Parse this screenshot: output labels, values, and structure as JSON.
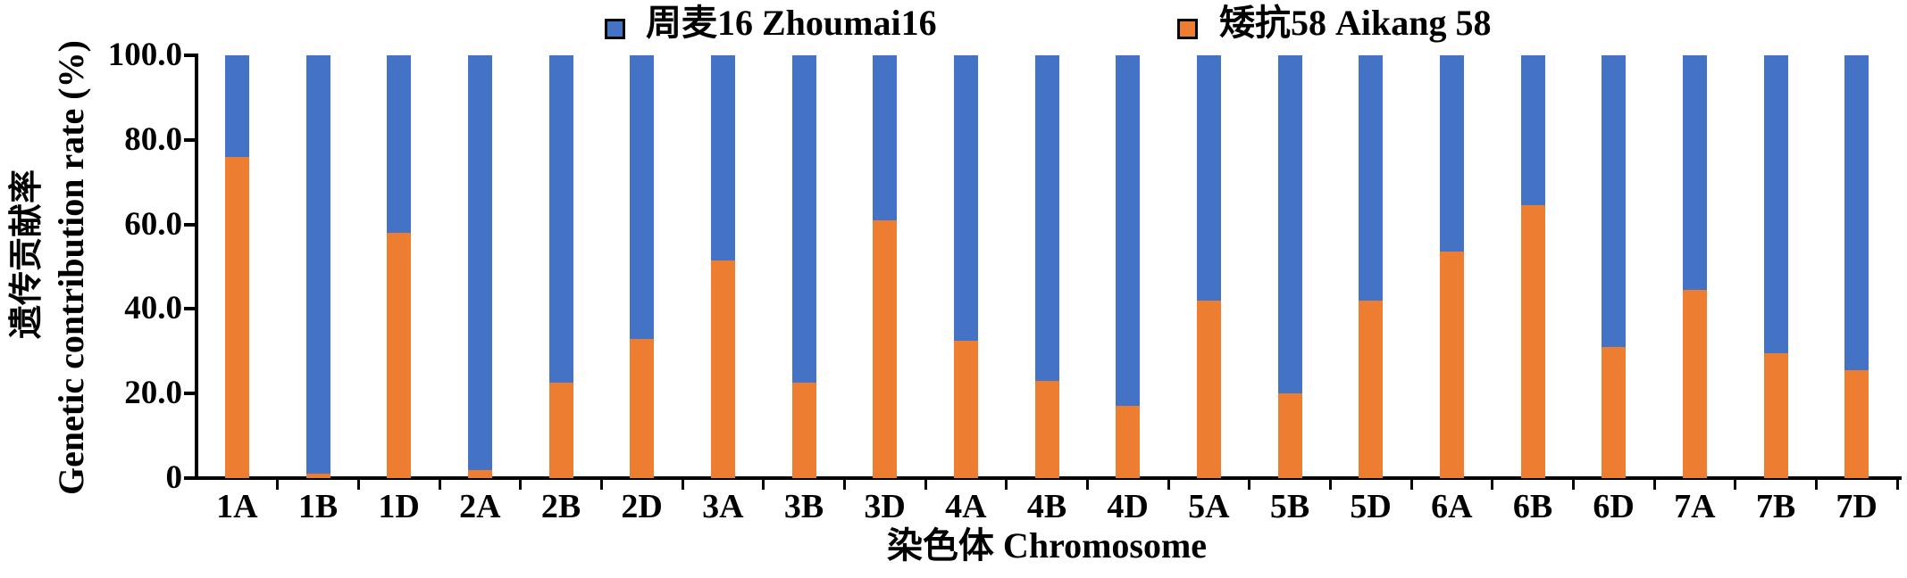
{
  "figure": {
    "legend": [
      {
        "label": "周麦16 Zhoumai16",
        "color": "#4472C4"
      },
      {
        "label": "矮抗58 Aikang 58",
        "color": "#ED7D31"
      }
    ],
    "y_axis": {
      "title_zh": "遗传贡献率",
      "title_en": "Genetic contribution rate (%)"
    },
    "x_axis": {
      "title": "染色体 Chromosome"
    }
  },
  "chart_data": {
    "type": "bar",
    "stacked": true,
    "title": "",
    "xlabel": "染色体 Chromosome",
    "ylabel": "遗传贡献率 Genetic contribution rate (%)",
    "ylim": [
      0,
      100
    ],
    "grid": false,
    "legend_position": "top",
    "categories": [
      "1A",
      "1B",
      "1D",
      "2A",
      "2B",
      "2D",
      "3A",
      "3B",
      "3D",
      "4A",
      "4B",
      "4D",
      "5A",
      "5B",
      "5D",
      "6A",
      "6B",
      "6D",
      "7A",
      "7B",
      "7D"
    ],
    "series": [
      {
        "key": "aikang58",
        "name": "矮抗58 Aikang 58",
        "color": "#ED7D31",
        "values": [
          76,
          1,
          58,
          2,
          22.5,
          33,
          51.5,
          22.5,
          61,
          32.5,
          23,
          17,
          42,
          20,
          42,
          53.5,
          64.5,
          31,
          44.5,
          29.5,
          25.5
        ]
      },
      {
        "key": "zhoumai16",
        "name": "周麦16 Zhoumai16",
        "color": "#4472C4",
        "values": [
          24,
          99,
          42,
          98,
          77.5,
          67,
          48.5,
          77.5,
          39,
          67.5,
          77,
          83,
          58,
          80,
          58,
          46.5,
          35.5,
          69,
          55.5,
          70.5,
          74.5
        ]
      }
    ],
    "ytick_values": [
      0,
      20,
      40,
      60,
      80,
      100
    ],
    "ytick_labels": [
      "0",
      "20.0",
      "40.0",
      "60.0",
      "80.0",
      "100.0"
    ]
  }
}
